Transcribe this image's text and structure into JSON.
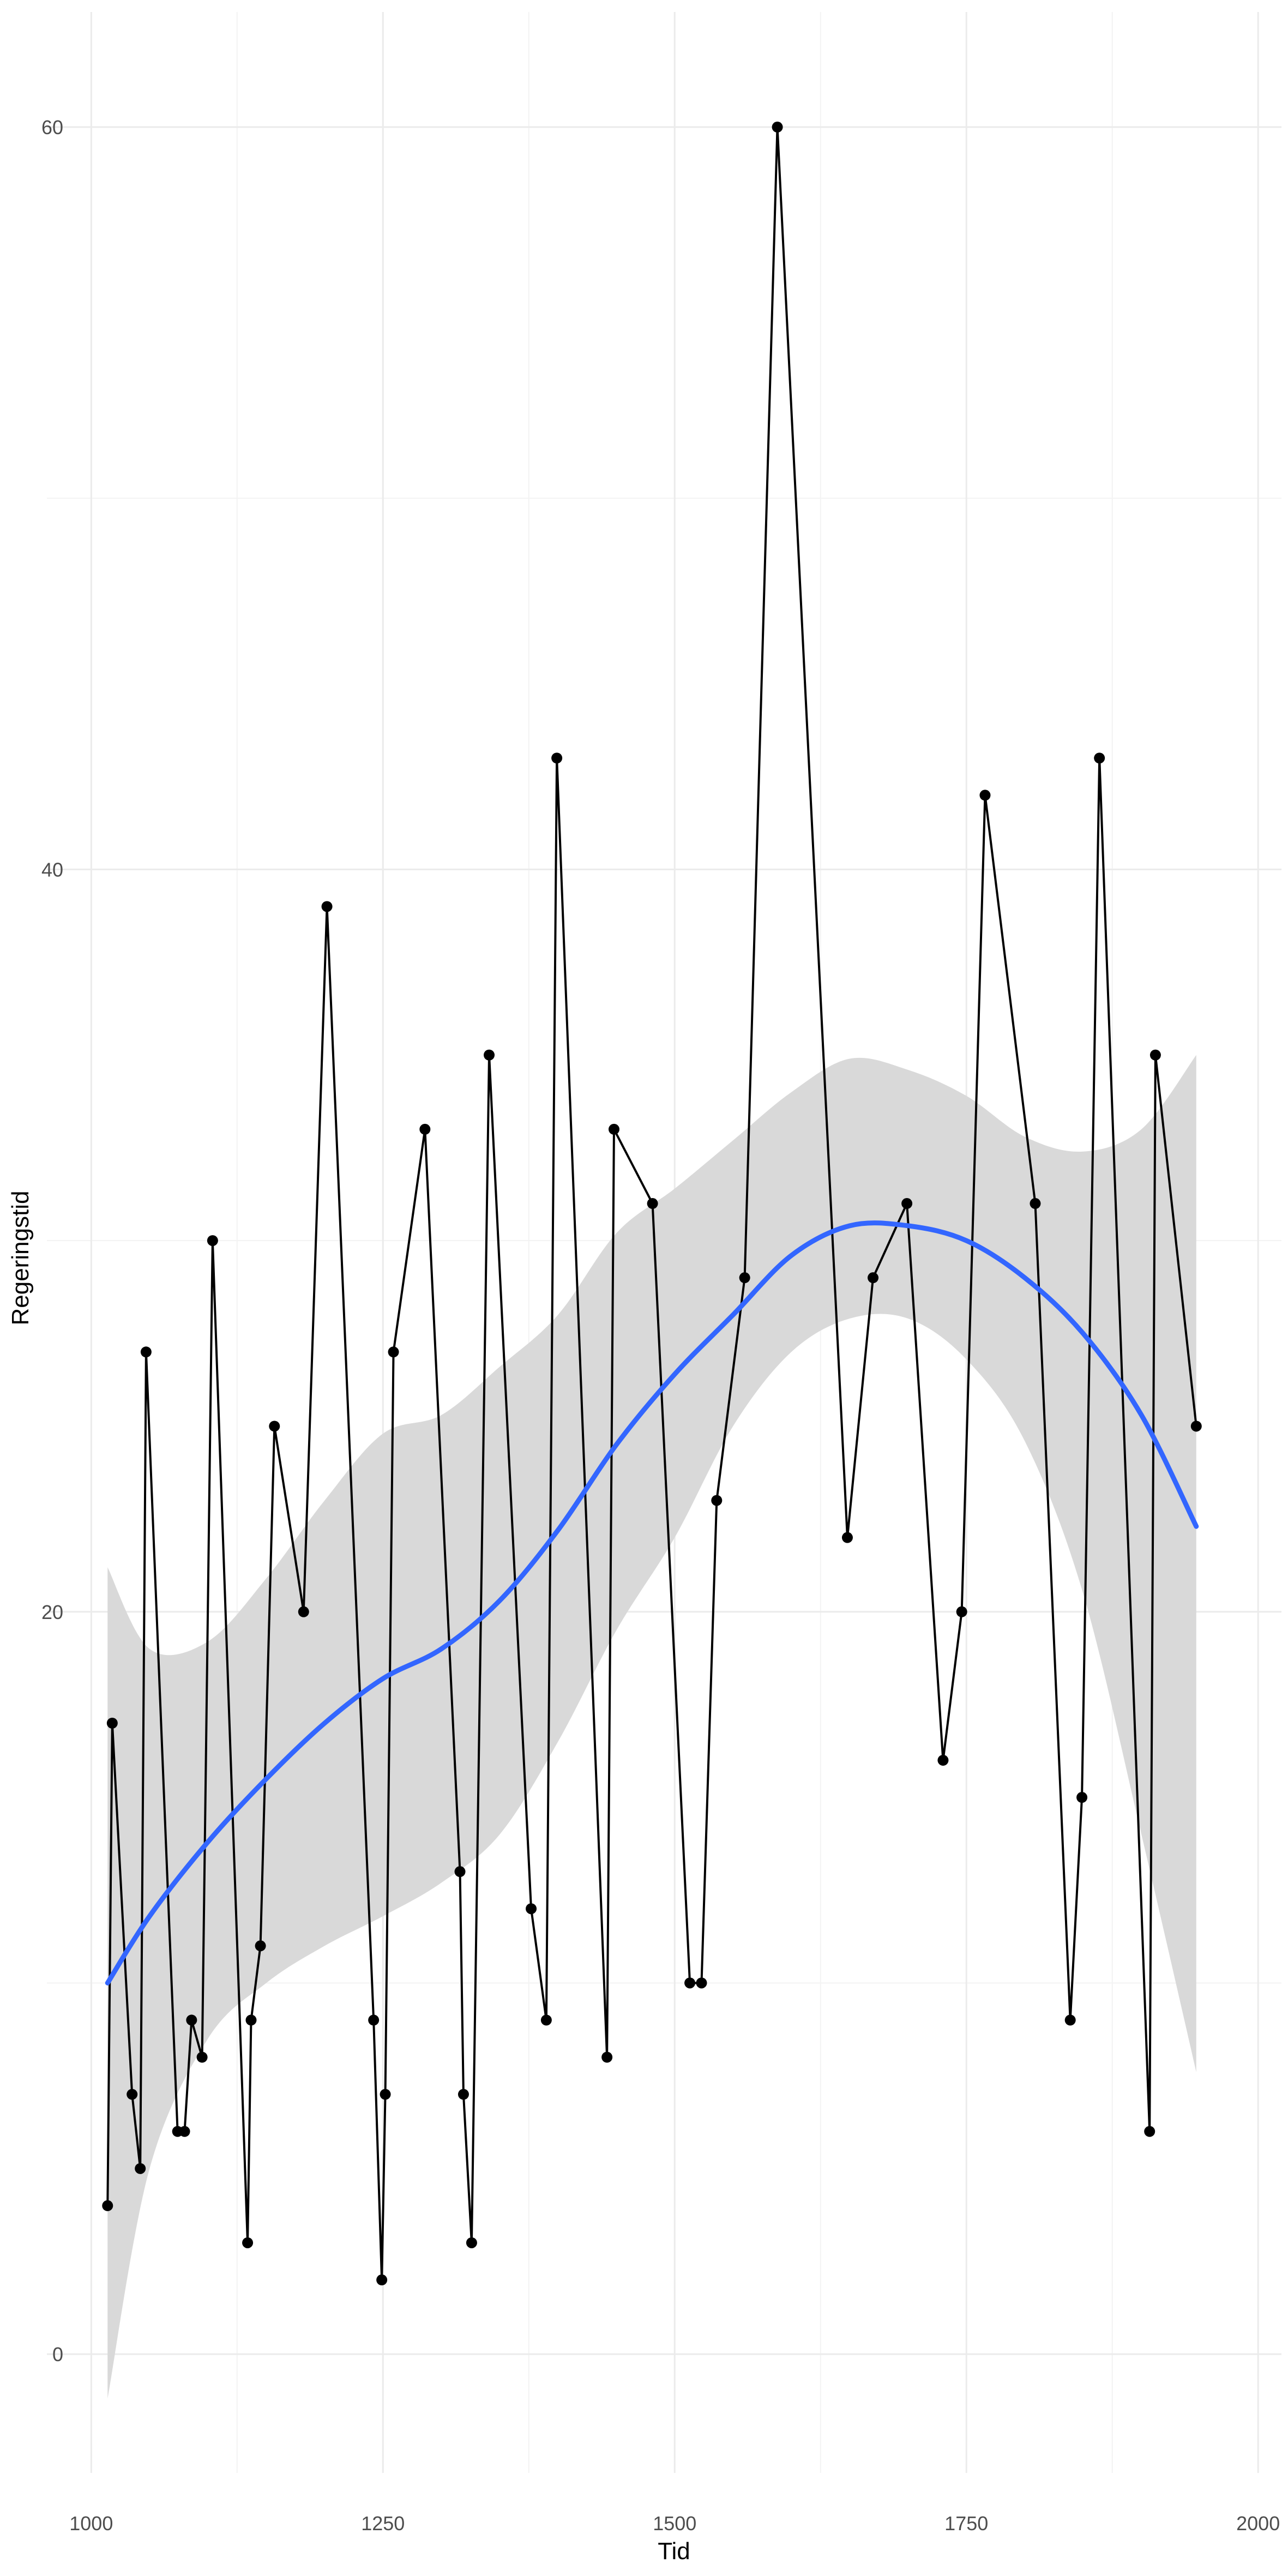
{
  "chart_data": {
    "type": "line",
    "title": "",
    "xlabel": "Tid",
    "ylabel": "Regeringstid",
    "xlim": [
      962,
      2020
    ],
    "ylim": [
      -3.2,
      63.1
    ],
    "xticks": [
      1000,
      1250,
      1500,
      1750,
      2000
    ],
    "yticks": [
      0,
      20,
      40,
      60
    ],
    "grid": true,
    "legend": "none",
    "colors": {
      "line": "#000000",
      "smooth": "#3366FF",
      "ribbon": "#d9d9d9",
      "grid_major": "#ebebeb",
      "grid_minor": "#f3f3f3"
    },
    "series": [
      {
        "values": [
          {
            "x": 1014,
            "y": 4
          },
          {
            "x": 1018,
            "y": 17
          },
          {
            "x": 1035,
            "y": 7
          },
          {
            "x": 1042,
            "y": 5
          },
          {
            "x": 1047,
            "y": 27
          },
          {
            "x": 1074,
            "y": 6
          },
          {
            "x": 1080,
            "y": 6
          },
          {
            "x": 1086,
            "y": 9
          },
          {
            "x": 1095,
            "y": 8
          },
          {
            "x": 1104,
            "y": 30
          },
          {
            "x": 1134,
            "y": 3
          },
          {
            "x": 1137,
            "y": 9
          },
          {
            "x": 1145,
            "y": 11
          },
          {
            "x": 1157,
            "y": 25
          },
          {
            "x": 1182,
            "y": 20
          },
          {
            "x": 1202,
            "y": 39
          },
          {
            "x": 1242,
            "y": 9
          },
          {
            "x": 1249,
            "y": 2
          },
          {
            "x": 1252,
            "y": 7
          },
          {
            "x": 1259,
            "y": 27
          },
          {
            "x": 1286,
            "y": 33
          },
          {
            "x": 1316,
            "y": 13
          },
          {
            "x": 1319,
            "y": 7
          },
          {
            "x": 1326,
            "y": 3
          },
          {
            "x": 1341,
            "y": 35
          },
          {
            "x": 1377,
            "y": 12
          },
          {
            "x": 1390,
            "y": 9
          },
          {
            "x": 1399,
            "y": 43
          },
          {
            "x": 1442,
            "y": 8
          },
          {
            "x": 1448,
            "y": 33
          },
          {
            "x": 1481,
            "y": 31
          },
          {
            "x": 1513,
            "y": 10
          },
          {
            "x": 1523,
            "y": 10
          },
          {
            "x": 1536,
            "y": 23
          },
          {
            "x": 1560,
            "y": 29
          },
          {
            "x": 1588,
            "y": 60
          },
          {
            "x": 1648,
            "y": 22
          },
          {
            "x": 1670,
            "y": 29
          },
          {
            "x": 1699,
            "y": 31
          },
          {
            "x": 1730,
            "y": 16
          },
          {
            "x": 1746,
            "y": 20
          },
          {
            "x": 1766,
            "y": 42
          },
          {
            "x": 1809,
            "y": 31
          },
          {
            "x": 1839,
            "y": 9
          },
          {
            "x": 1849,
            "y": 15
          },
          {
            "x": 1864,
            "y": 43
          },
          {
            "x": 1907,
            "y": 6
          },
          {
            "x": 1912,
            "y": 35
          },
          {
            "x": 1947,
            "y": 25
          }
        ]
      }
    ],
    "smooth": {
      "x": [
        1014,
        1050,
        1100,
        1150,
        1200,
        1250,
        1300,
        1350,
        1400,
        1450,
        1500,
        1550,
        1600,
        1650,
        1700,
        1750,
        1800,
        1850,
        1900,
        1947
      ],
      "y": [
        10.0,
        11.8,
        13.8,
        15.5,
        17.0,
        18.2,
        19.0,
        20.3,
        22.2,
        24.5,
        26.4,
        28.0,
        29.6,
        30.4,
        30.4,
        30.0,
        29.0,
        27.5,
        25.3,
        22.3
      ],
      "lower": [
        -1.2,
        5.0,
        8.5,
        10.0,
        11.0,
        11.8,
        12.7,
        14.0,
        16.5,
        19.5,
        22.0,
        25.0,
        27.0,
        27.9,
        27.9,
        26.8,
        24.6,
        20.5,
        14.0,
        7.6
      ],
      "upper": [
        21.2,
        19.0,
        19.2,
        20.9,
        23.0,
        24.8,
        25.3,
        26.6,
        28.0,
        30.2,
        31.4,
        32.7,
        34.0,
        34.9,
        34.6,
        33.9,
        32.8,
        32.4,
        33.0,
        35.0
      ]
    }
  }
}
